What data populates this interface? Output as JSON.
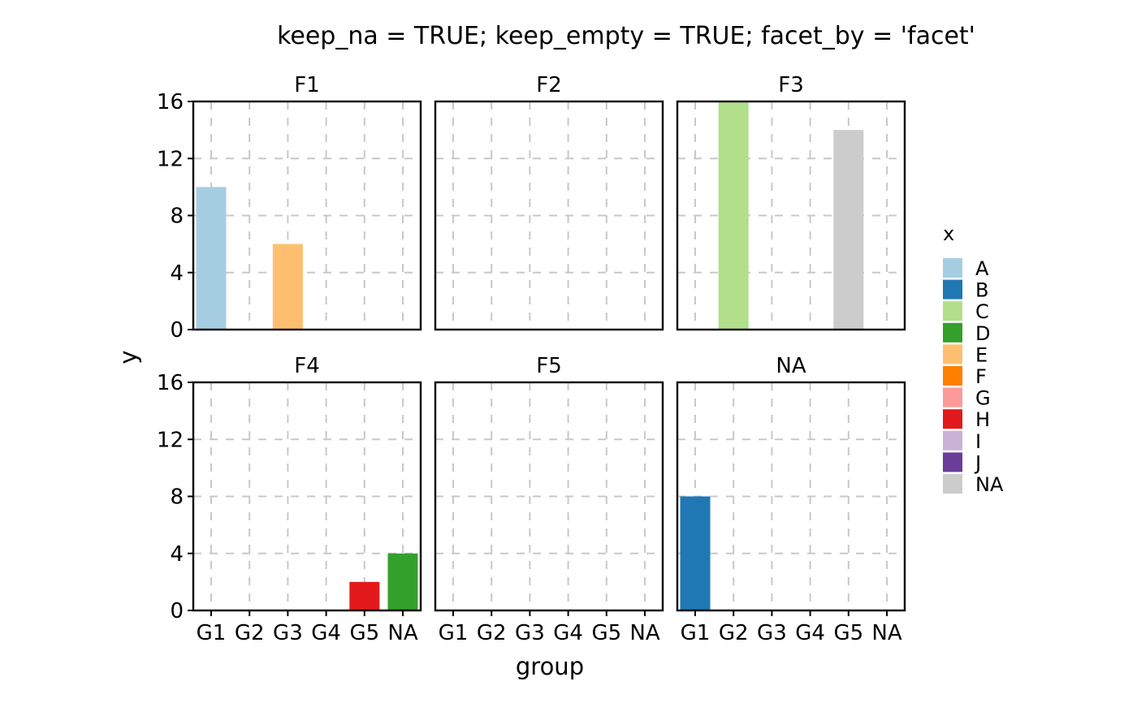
{
  "chart_data": {
    "type": "bar",
    "title": "keep_na = TRUE; keep_empty = TRUE; facet_by = 'facet'",
    "xlabel": "group",
    "ylabel": "y",
    "categories": [
      "G1",
      "G2",
      "G3",
      "G4",
      "G5",
      "NA"
    ],
    "ylim": [
      0,
      16
    ],
    "yticks": [
      0,
      4,
      8,
      12,
      16
    ],
    "grid": true,
    "facet_layout": {
      "rows": 2,
      "cols": 3
    },
    "facets": [
      {
        "name": "F1",
        "bars": [
          {
            "x": "G1",
            "fill": "A",
            "value": 10
          },
          {
            "x": "G3",
            "fill": "E",
            "value": 6
          }
        ]
      },
      {
        "name": "F2",
        "bars": []
      },
      {
        "name": "F3",
        "bars": [
          {
            "x": "G2",
            "fill": "C",
            "value": 16
          },
          {
            "x": "G5",
            "fill": "NA",
            "value": 14
          }
        ]
      },
      {
        "name": "F4",
        "bars": [
          {
            "x": "G5",
            "fill": "H",
            "value": 2
          },
          {
            "x": "NA",
            "fill": "D",
            "value": 4
          }
        ]
      },
      {
        "name": "F5",
        "bars": []
      },
      {
        "name": "NA",
        "bars": [
          {
            "x": "G1",
            "fill": "B",
            "value": 8
          }
        ]
      }
    ],
    "legend": {
      "title": "x",
      "position": "right",
      "entries": [
        {
          "label": "A",
          "color": "#a6cee3"
        },
        {
          "label": "B",
          "color": "#1f78b4"
        },
        {
          "label": "C",
          "color": "#b2df8a"
        },
        {
          "label": "D",
          "color": "#33a02c"
        },
        {
          "label": "E",
          "color": "#fdbf6f"
        },
        {
          "label": "F",
          "color": "#ff7f00"
        },
        {
          "label": "G",
          "color": "#fb9a99"
        },
        {
          "label": "H",
          "color": "#e31a1c"
        },
        {
          "label": "I",
          "color": "#cab2d6"
        },
        {
          "label": "J",
          "color": "#6a3d9a"
        },
        {
          "label": "NA",
          "color": "#cccccc"
        }
      ]
    }
  }
}
